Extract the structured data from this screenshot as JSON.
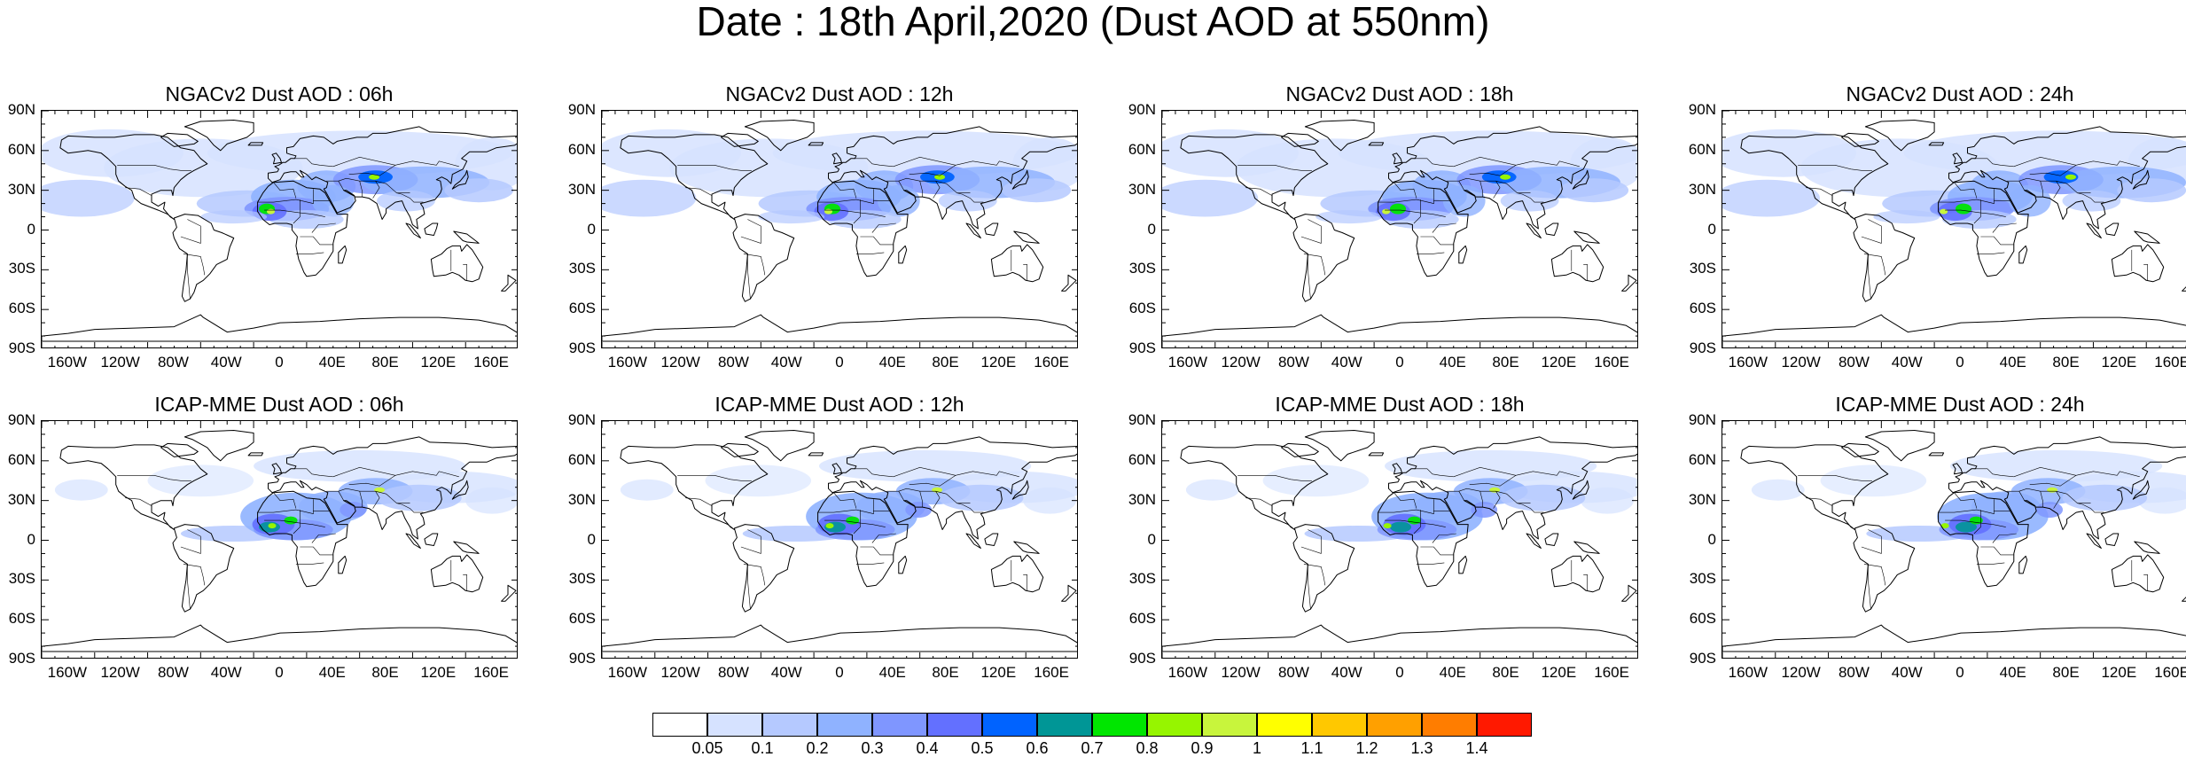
{
  "title": "Date : 18th April,2020 (Dust AOD at 550nm)",
  "lat_ticks": [
    "90N",
    "60N",
    "30N",
    "0",
    "30S",
    "60S",
    "90S"
  ],
  "lon_ticks": [
    "160W",
    "120W",
    "80W",
    "40W",
    "0",
    "40E",
    "80E",
    "120E",
    "160E"
  ],
  "panels": [
    {
      "title": "NGACv2 Dust AOD : 06h",
      "model": "ngac",
      "hour": 6
    },
    {
      "title": "NGACv2 Dust AOD : 12h",
      "model": "ngac",
      "hour": 12
    },
    {
      "title": "NGACv2 Dust AOD : 18h",
      "model": "ngac",
      "hour": 18
    },
    {
      "title": "NGACv2 Dust AOD : 24h",
      "model": "ngac",
      "hour": 24
    },
    {
      "title": "ICAP-MME Dust AOD : 06h",
      "model": "icap",
      "hour": 6
    },
    {
      "title": "ICAP-MME Dust AOD : 12h",
      "model": "icap",
      "hour": 12
    },
    {
      "title": "ICAP-MME Dust AOD : 18h",
      "model": "icap",
      "hour": 18
    },
    {
      "title": "ICAP-MME Dust AOD : 24h",
      "model": "icap",
      "hour": 24
    }
  ],
  "colorbar": {
    "colors": [
      "#ffffff",
      "#d6e2ff",
      "#b5c9ff",
      "#8fb2ff",
      "#7f96ff",
      "#6370ff",
      "#0063ff",
      "#009696",
      "#00e600",
      "#96f500",
      "#c8f53c",
      "#ffff00",
      "#ffc800",
      "#ffa000",
      "#ff7d00",
      "#ff1900"
    ],
    "labels": [
      "0.05",
      "0.1",
      "0.2",
      "0.3",
      "0.4",
      "0.5",
      "0.6",
      "0.7",
      "0.8",
      "0.9",
      "1",
      "1.1",
      "1.2",
      "1.3",
      "1.4"
    ]
  }
}
